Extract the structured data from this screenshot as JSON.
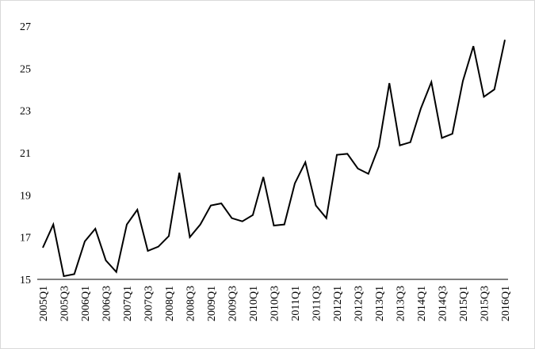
{
  "chart_data": {
    "type": "line",
    "title": "",
    "xlabel": "",
    "ylabel": "",
    "ylim": [
      15,
      27
    ],
    "yticks": [
      15,
      17,
      19,
      21,
      23,
      25,
      27
    ],
    "grid": false,
    "legend": "none",
    "line_color": "#000000",
    "x": [
      "2005Q1",
      "2005Q2",
      "2005Q3",
      "2005Q4",
      "2006Q1",
      "2006Q2",
      "2006Q3",
      "2006Q4",
      "2007Q1",
      "2007Q2",
      "2007Q3",
      "2007Q4",
      "2008Q1",
      "2008Q2",
      "2008Q3",
      "2008Q4",
      "2009Q1",
      "2009Q2",
      "2009Q3",
      "2009Q4",
      "2010Q1",
      "2010Q2",
      "2010Q3",
      "2010Q4",
      "2011Q1",
      "2011Q2",
      "2011Q3",
      "2011Q4",
      "2012Q1",
      "2012Q2",
      "2012Q3",
      "2012Q4",
      "2013Q1",
      "2013Q2",
      "2013Q3",
      "2013Q4",
      "2014Q1",
      "2014Q2",
      "2014Q3",
      "2014Q4",
      "2015Q1",
      "2015Q2",
      "2015Q3",
      "2015Q4",
      "2016Q1"
    ],
    "xtick_labels": [
      "2005Q1",
      "2005Q3",
      "2006Q1",
      "2006Q3",
      "2007Q1",
      "2007Q3",
      "2008Q1",
      "2008Q3",
      "2009Q1",
      "2009Q3",
      "2010Q1",
      "2010Q3",
      "2011Q1",
      "2011Q3",
      "2012Q1",
      "2012Q3",
      "2013Q1",
      "2013Q3",
      "2014Q1",
      "2014Q3",
      "2015Q1",
      "2015Q3",
      "2016Q1"
    ],
    "series": [
      {
        "values": [
          16.5,
          17.6,
          15.15,
          15.25,
          16.8,
          17.4,
          15.9,
          15.35,
          17.6,
          18.3,
          16.35,
          16.55,
          17.05,
          20.05,
          17.0,
          17.6,
          18.5,
          18.6,
          17.9,
          17.75,
          18.05,
          19.85,
          17.55,
          17.6,
          19.55,
          20.55,
          18.5,
          17.9,
          20.9,
          20.95,
          20.25,
          20.0,
          21.3,
          24.3,
          21.35,
          21.5,
          23.1,
          24.35,
          21.7,
          21.9,
          24.4,
          26.05,
          23.65,
          24.0,
          26.35
        ]
      }
    ]
  }
}
